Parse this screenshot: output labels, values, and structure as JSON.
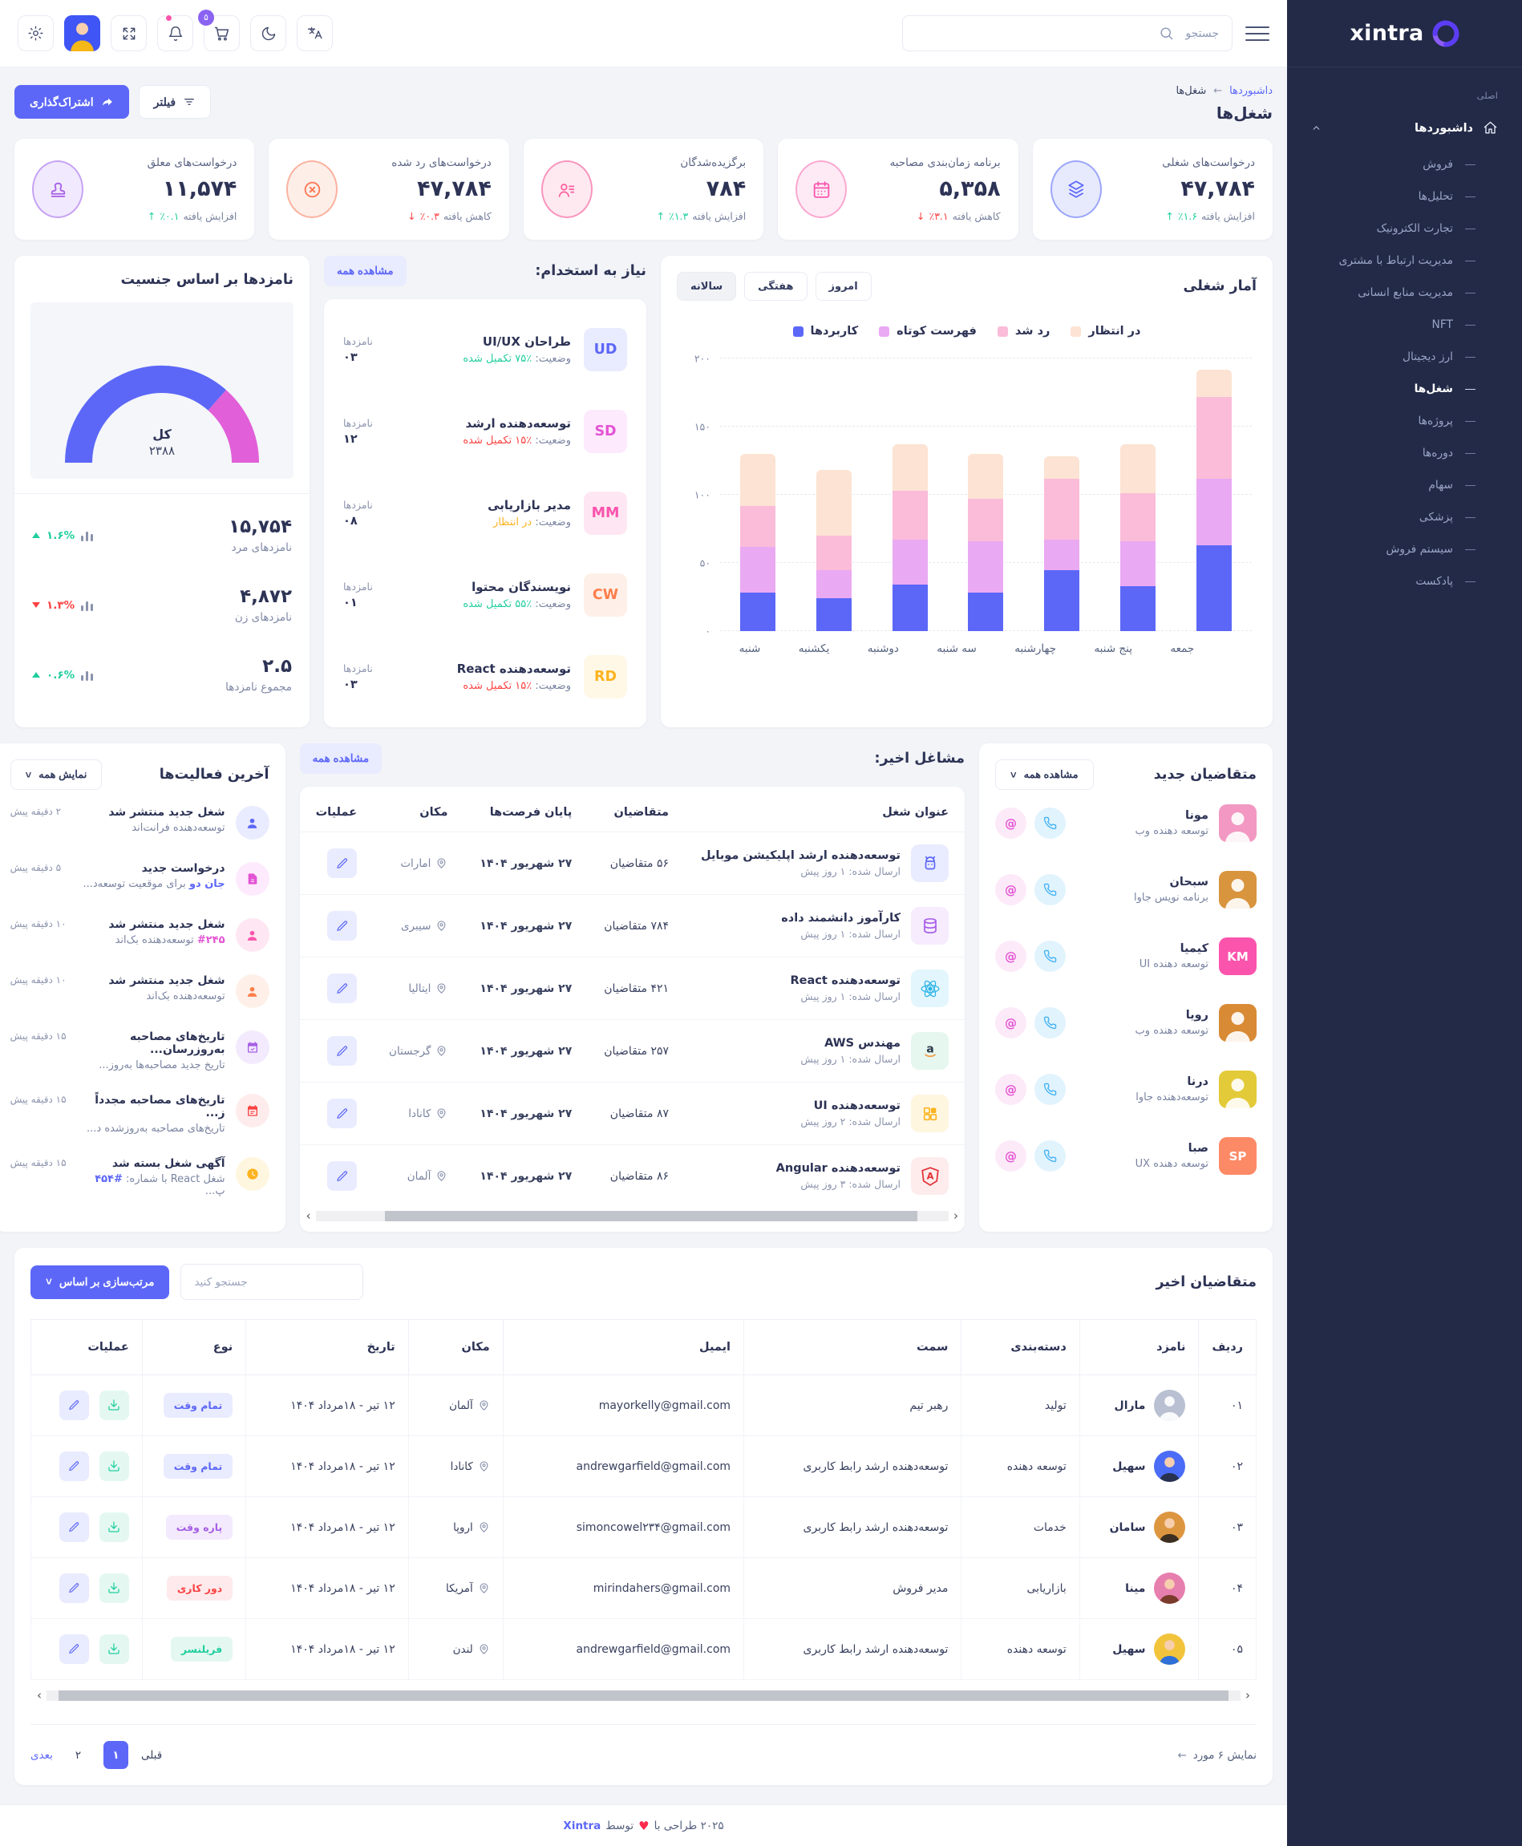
{
  "ui": {
    "at": "@",
    "heart": "♥",
    "bc_arrow": "←",
    "info_arrow": "←",
    "chev_left": "‹",
    "chev_right": "›",
    "chev_down": "˅"
  },
  "header": {
    "search_placeholder": "جستجو",
    "cart_badge": "۵"
  },
  "sidebar": {
    "logo_text": "xintra",
    "section_label": "اصلی",
    "dashboards_label": "داشبوردها",
    "items": [
      {
        "label": "فروش"
      },
      {
        "label": "تحلیل‌ها"
      },
      {
        "label": "تجارت الکترونیک"
      },
      {
        "label": "مدیریت ارتباط با مشتری"
      },
      {
        "label": "مدیریت منابع انسانی"
      },
      {
        "label": "NFT"
      },
      {
        "label": "ارز دیجیتال"
      },
      {
        "label": "شغل‌ها"
      },
      {
        "label": "پروژه‌ها"
      },
      {
        "label": "دوره‌ها"
      },
      {
        "label": "سهام"
      },
      {
        "label": "پزشکی"
      },
      {
        "label": "سیستم فروش"
      },
      {
        "label": "پادکست"
      }
    ]
  },
  "page": {
    "breadcrumb_parent": "داشبوردها",
    "breadcrumb_current": "شغل‌ها",
    "title": "شغل‌ها",
    "share_label": "اشتراک‌گذاری",
    "filter_label": "فیلتر"
  },
  "stats": [
    {
      "title": "درخواست‌های شغلی",
      "value": "۴۷,۷۸۴",
      "change_label": "افزایش یافته",
      "change_value": "٪۱.۶",
      "arrow": "↑"
    },
    {
      "title": "برنامه زمان‌بندی مصاحبه",
      "value": "۵,۳۵۸",
      "change_label": "کاهش یافته",
      "change_value": "٪۳.۱",
      "arrow": "↓"
    },
    {
      "title": "برگزیده‌شدگان",
      "value": "۷۸۴",
      "change_label": "افزایش یافته",
      "change_value": "٪۱.۳",
      "arrow": "↑"
    },
    {
      "title": "درخواست‌های رد شده",
      "value": "۴۷,۷۸۴",
      "change_label": "کاهش یافته",
      "change_value": "٪۰.۳",
      "arrow": "↓"
    },
    {
      "title": "درخواست‌های معلق",
      "value": "۱۱,۵۷۴",
      "change_label": "افزایش یافته",
      "change_value": "٪۰.۱",
      "arrow": "↑"
    }
  ],
  "job_stats": {
    "title": "آمار شغلی",
    "tabs": [
      {
        "label": "امروز"
      },
      {
        "label": "هفتگی"
      },
      {
        "label": "سالانه"
      }
    ],
    "chart_data": {
      "type": "bar",
      "stacked": true,
      "categories": [
        "شنبه",
        "یکشنبه",
        "دوشنبه",
        "سه شنبه",
        "چهارشنبه",
        "پنج شنبه",
        "جمعه"
      ],
      "series": [
        {
          "name": "کاربردها",
          "color": "#5c67f7",
          "values": [
            28,
            24,
            34,
            28,
            45,
            33,
            63
          ]
        },
        {
          "name": "فهرست کوتاه",
          "color": "#eaa9f3",
          "values": [
            34,
            21,
            33,
            38,
            22,
            33,
            49
          ]
        },
        {
          "name": "رد شد",
          "color": "#fabcd8",
          "values": [
            30,
            25,
            36,
            31,
            45,
            35,
            60
          ]
        },
        {
          "name": "در انتظار",
          "color": "#fde3d3",
          "values": [
            38,
            48,
            34,
            33,
            16,
            36,
            20
          ]
        }
      ],
      "ylim": [
        0,
        200
      ],
      "yticks": [
        "۰",
        "۵۰",
        "۱۰۰",
        "۱۵۰",
        "۲۰۰"
      ],
      "legend_position": "top",
      "grid": "dashed"
    }
  },
  "hiring": {
    "title": "نیاز به استخدام:",
    "view_all": "مشاهده همه",
    "status_label": "وضعیت:",
    "cand_label": "نامزدها",
    "rows": [
      {
        "badge": "UD",
        "title": "طراحان UI/UX",
        "status": "٪۷۵ تکمیل شده",
        "count": "۰۳"
      },
      {
        "badge": "SD",
        "title": "توسعه‌دهنده ارشد",
        "status": "٪۱۵ تکمیل شده",
        "count": "۱۲"
      },
      {
        "badge": "MM",
        "title": "مدیر بازاریابی",
        "status": "در انتظار",
        "count": "۰۸"
      },
      {
        "badge": "CW",
        "title": "نویسندگان محتوا",
        "status": "٪۵۵ تکمیل شده",
        "count": "۰۱"
      },
      {
        "badge": "RD",
        "title": "توسعه‌دهنده React",
        "status": "٪۱۵ تکمیل شده",
        "count": "۰۳"
      }
    ]
  },
  "gender": {
    "title": "نامزدها بر اساس جنسیت",
    "total_label": "کل",
    "total_value": "۲۳۸۸",
    "chart_data": {
      "type": "pie",
      "shape": "half-donut",
      "center_label": "کل",
      "center_value": "۲۳۸۸",
      "slices": [
        {
          "label": "نامزدهای مرد",
          "pct": 73,
          "color": "#5c67f7"
        },
        {
          "label": "نامزدهای زن",
          "pct": 27,
          "color": "#e15fd8"
        }
      ]
    },
    "rows": [
      {
        "value": "۱۵,۷۵۴",
        "label": "نامزدهای مرد",
        "pct": "۱.۶%"
      },
      {
        "value": "۴,۸۷۲",
        "label": "نامزدهای زن",
        "pct": "۱.۳%"
      },
      {
        "value": "۲.۵",
        "label": "مجموع نامزدها",
        "pct": "۰.۶%"
      }
    ]
  },
  "recent_jobs": {
    "title": "مشاغل اخیر:",
    "view_all": "مشاهده همه",
    "headers": [
      "عنوان شغل",
      "متقاضیان",
      "پایان فرصت‌ها",
      "مکان",
      "عملیات"
    ],
    "rows": [
      {
        "title": "توسعه‌دهنده ارشد اپلیکیشن موبایل",
        "posted": "ارسال شده: ۱ روز پیش",
        "applicants": "۵۶ متقاضیان",
        "deadline": "۲۷ شهریور ۱۴۰۴",
        "location": "امارات",
        "icon_letter": ""
      },
      {
        "title": "کارآموز دانشمند داده",
        "posted": "ارسال شده: ۱ روز پیش",
        "applicants": "۷۸۴ متقاضیان",
        "deadline": "۲۷ شهریور ۱۴۰۴",
        "location": "سیبری",
        "icon_letter": ""
      },
      {
        "title": "توسعه‌دهنده React",
        "posted": "ارسال شده: ۱ روز پیش",
        "applicants": "۴۲۱ متقاضیان",
        "deadline": "۲۷ شهریور ۱۴۰۴",
        "location": "ایتالیا",
        "icon_letter": ""
      },
      {
        "title": "مهندس AWS",
        "posted": "ارسال شده: ۱ روز پیش",
        "applicants": "۲۵۷ متقاضیان",
        "deadline": "۲۷ شهریور ۱۴۰۴",
        "location": "گرجستان",
        "icon_letter": "a"
      },
      {
        "title": "توسعه‌دهنده UI",
        "posted": "ارسال شده: ۲ روز پیش",
        "applicants": "۸۷ متقاضیان",
        "deadline": "۲۷ شهریور ۱۴۰۴",
        "location": "کانادا",
        "icon_letter": ""
      },
      {
        "title": "توسعه‌دهنده Angular",
        "posted": "ارسال شده: ۳ روز پیش",
        "applicants": "۸۶ متقاضیان",
        "deadline": "۲۷ شهریور ۱۴۰۴",
        "location": "آلمان",
        "icon_letter": "A"
      }
    ]
  },
  "new_applicants": {
    "title": "متقاضیان جدید",
    "view_all": "مشاهده همه",
    "rows": [
      {
        "name": "مونا",
        "role": "توسعه دهنده وب",
        "initials": ""
      },
      {
        "name": "سبحان",
        "role": "برنامه نویس جاوا",
        "initials": ""
      },
      {
        "name": "کیمیا",
        "role": "توسعه دهنده UI",
        "initials": "KM"
      },
      {
        "name": "رویا",
        "role": "توسعه دهنده وب",
        "initials": ""
      },
      {
        "name": "درنا",
        "role": "توسعه‌دهنده جاوا",
        "initials": ""
      },
      {
        "name": "صبا",
        "role": "توسعه دهنده UX",
        "initials": "SP"
      }
    ]
  },
  "activities": {
    "title": "آخرین فعالیت‌ها",
    "view_all": "نمایش همه",
    "rows": [
      {
        "title": "شغل جدید منتشر شد",
        "sub_pre": "توسعه‌دهنده فرانت‌اند",
        "sub_link": "",
        "sub_post": "",
        "time": "۲ دقیقه پیش"
      },
      {
        "title": "درخواست جدید",
        "sub_pre": "",
        "sub_link": "جان دو",
        "sub_post": " برای موقعیت توسعه‌د...",
        "time": "۵ دقیقه پیش"
      },
      {
        "title": "شغل جدید منتشر شد",
        "sub_pre": "",
        "sub_link": "#۲۴۵",
        "sub_post": " توسعه‌دهنده بک‌اند",
        "time": "۱۰ دقیقه پیش"
      },
      {
        "title": "شغل جدید منتشر شد",
        "sub_pre": "توسعه‌دهنده بک‌اند",
        "sub_link": "",
        "sub_post": "",
        "time": "۱۰ دقیقه پیش"
      },
      {
        "title": "تاریخ‌های مصاحبه به‌روزرسان...",
        "sub_pre": "تاریخ جدید مصاحبه‌ها به‌روز...",
        "sub_link": "",
        "sub_post": "",
        "time": "۱۵ دقیقه پیش"
      },
      {
        "title": "تاریخ‌های مصاحبه مجدداً ز...",
        "sub_pre": "تاریخ‌های مصاحبه به‌روزشده د...",
        "sub_link": "",
        "sub_post": "",
        "time": "۱۵ دقیقه پیش"
      },
      {
        "title": "آگهی شغل بسته شد",
        "sub_pre": "شغل React با شماره: ",
        "sub_link": "#۴۵۴",
        "sub_post": " پ...",
        "time": "۱۵ دقیقه پیش"
      }
    ]
  },
  "table": {
    "title": "متقاضیان اخیر",
    "search_placeholder": "جستجو کنید",
    "sort_label": "مرتب‌سازی بر اساس",
    "headers": [
      "ردیف",
      "نامزد",
      "دسته‌بندی",
      "سمت",
      "ایمیل",
      "مکان",
      "تاریخ",
      "نوع",
      "عملیات"
    ],
    "rows": [
      {
        "id": "۰۱",
        "name": "مارال",
        "category": "تولید",
        "role": "رهبر تیم",
        "email": "mayorkelly@gmail.com",
        "location": "آلمان",
        "date": "۱۲ تیر - ۱۸مرداد ۱۴۰۴",
        "type": "تمام وقت"
      },
      {
        "id": "۰۲",
        "name": "سهیل",
        "category": "توسعه دهنده",
        "role": "توسعه‌دهنده ارشد رابط کاربری",
        "email": "andrewgarfield@gmail.com",
        "location": "کانادا",
        "date": "۱۲ تیر - ۱۸مرداد ۱۴۰۴",
        "type": "تمام وقت"
      },
      {
        "id": "۰۳",
        "name": "سامان",
        "category": "خدمات",
        "role": "توسعه‌دهنده ارشد رابط کاربری",
        "email": "simoncowel۲۳۴@gmail.com",
        "location": "اروپا",
        "date": "۱۲ تیر - ۱۸مرداد ۱۴۰۴",
        "type": "پاره وقت"
      },
      {
        "id": "۰۴",
        "name": "مینا",
        "category": "بازاریابی",
        "role": "مدیر فروش",
        "email": "mirindahers@gmail.com",
        "location": "آمریکا",
        "date": "۱۲ تیر - ۱۸مرداد ۱۴۰۴",
        "type": "دور کاری"
      },
      {
        "id": "۰۵",
        "name": "سهیل",
        "category": "توسعه دهنده",
        "role": "توسعه‌دهنده ارشد رابط کاربری",
        "email": "andrewgarfield@gmail.com",
        "location": "لندن",
        "date": "۱۲ تیر - ۱۸مرداد ۱۴۰۴",
        "type": "فریلنسر"
      }
    ]
  },
  "pagination": {
    "info": "نمایش ۶ مورد",
    "prev": "قبلی",
    "page1": "۱",
    "page2": "۲",
    "next": "بعدی"
  },
  "footer": {
    "pre": "۲۰۲۵ طراحی با",
    "mid": "توسط",
    "brand": "Xintra"
  }
}
